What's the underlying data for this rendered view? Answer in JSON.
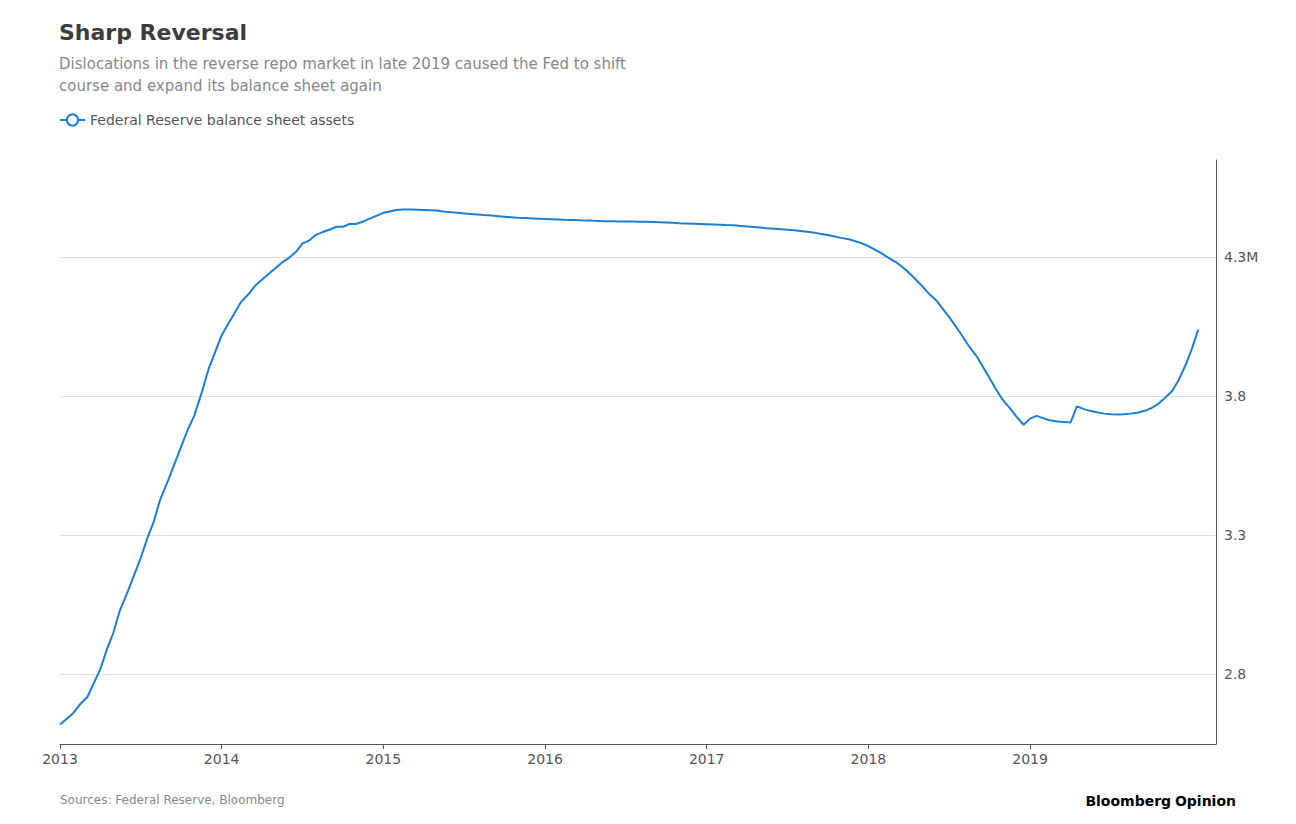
{
  "chart_data": {
    "type": "line",
    "title": "Sharp Reversal",
    "subtitle": [
      "Dislocations in the reverse repo market in late 2019 caused the Fed to shift",
      "course and expand its balance sheet again"
    ],
    "annotations": [
      {
        "text": "Sources: Federal Reserve, Bloomberg"
      },
      {
        "text": "Bloomberg"
      },
      {
        "text": "Opinion",
        "color": "#1a7fd4"
      }
    ],
    "x": [
      2013.0,
      2013.04,
      2013.08,
      2013.12,
      2013.17,
      2013.21,
      2013.25,
      2013.29,
      2013.33,
      2013.37,
      2013.42,
      2013.46,
      2013.5,
      2013.54,
      2013.58,
      2013.62,
      2013.67,
      2013.71,
      2013.75,
      2013.79,
      2013.83,
      2013.88,
      2013.92,
      2013.96,
      2014.0,
      2014.04,
      2014.08,
      2014.12,
      2014.17,
      2014.21,
      2014.25,
      2014.29,
      2014.33,
      2014.37,
      2014.42,
      2014.46,
      2014.5,
      2014.54,
      2014.58,
      2014.62,
      2014.67,
      2014.71,
      2014.75,
      2014.79,
      2014.83,
      2014.88,
      2014.92,
      2014.96,
      2015.0,
      2015.04,
      2015.08,
      2015.12,
      2015.17,
      2015.21,
      2015.25,
      2015.29,
      2015.33,
      2015.37,
      2015.42,
      2015.46,
      2015.5,
      2015.54,
      2015.58,
      2015.62,
      2015.67,
      2015.71,
      2015.75,
      2015.79,
      2015.83,
      2015.88,
      2015.92,
      2015.96,
      2016.0,
      2016.04,
      2016.08,
      2016.12,
      2016.17,
      2016.21,
      2016.25,
      2016.29,
      2016.33,
      2016.37,
      2016.42,
      2016.46,
      2016.5,
      2016.54,
      2016.58,
      2016.62,
      2016.67,
      2016.71,
      2016.75,
      2016.79,
      2016.83,
      2016.88,
      2016.92,
      2016.96,
      2017.0,
      2017.04,
      2017.08,
      2017.12,
      2017.17,
      2017.21,
      2017.25,
      2017.29,
      2017.33,
      2017.37,
      2017.42,
      2017.46,
      2017.5,
      2017.54,
      2017.58,
      2017.62,
      2017.67,
      2017.71,
      2017.75,
      2017.79,
      2017.83,
      2017.88,
      2017.92,
      2017.96,
      2018.0,
      2018.04,
      2018.08,
      2018.12,
      2018.17,
      2018.21,
      2018.25,
      2018.29,
      2018.33,
      2018.37,
      2018.42,
      2018.46,
      2018.5,
      2018.54,
      2018.58,
      2018.62,
      2018.67,
      2018.71,
      2018.75,
      2018.79,
      2018.83,
      2018.88,
      2018.92,
      2018.96,
      2019.0,
      2019.04,
      2019.08,
      2019.12,
      2019.17,
      2019.21,
      2019.25,
      2019.29,
      2019.33,
      2019.37,
      2019.42,
      2019.46,
      2019.5,
      2019.54,
      2019.58,
      2019.62,
      2019.67,
      2019.71,
      2019.75,
      2019.79,
      2019.83,
      2019.88,
      2019.92,
      2019.96,
      2020.0,
      2020.04
    ],
    "series": [
      {
        "name": "Federal Reserve balance sheet assets",
        "color": "#1a7fd4",
        "values": [
          2.62,
          2.64,
          2.66,
          2.69,
          2.72,
          2.77,
          2.82,
          2.89,
          2.95,
          3.03,
          3.1,
          3.16,
          3.22,
          3.29,
          3.35,
          3.43,
          3.5,
          3.56,
          3.62,
          3.68,
          3.73,
          3.82,
          3.9,
          3.96,
          4.02,
          4.06,
          4.1,
          4.14,
          4.17,
          4.2,
          4.22,
          4.24,
          4.26,
          4.28,
          4.3,
          4.32,
          4.35,
          4.36,
          4.38,
          4.39,
          4.4,
          4.41,
          4.41,
          4.42,
          4.42,
          4.43,
          4.44,
          4.45,
          4.46,
          4.465,
          4.47,
          4.472,
          4.472,
          4.471,
          4.47,
          4.469,
          4.468,
          4.465,
          4.462,
          4.46,
          4.458,
          4.456,
          4.454,
          4.452,
          4.45,
          4.448,
          4.446,
          4.444,
          4.442,
          4.441,
          4.44,
          4.439,
          4.438,
          4.437,
          4.436,
          4.435,
          4.434,
          4.433,
          4.432,
          4.432,
          4.431,
          4.43,
          4.43,
          4.429,
          4.429,
          4.429,
          4.428,
          4.428,
          4.427,
          4.426,
          4.425,
          4.424,
          4.423,
          4.422,
          4.421,
          4.42,
          4.419,
          4.418,
          4.417,
          4.416,
          4.415,
          4.413,
          4.411,
          4.409,
          4.407,
          4.405,
          4.403,
          4.401,
          4.399,
          4.397,
          4.395,
          4.392,
          4.388,
          4.384,
          4.38,
          4.375,
          4.37,
          4.365,
          4.358,
          4.35,
          4.34,
          4.328,
          4.315,
          4.3,
          4.283,
          4.265,
          4.245,
          4.222,
          4.198,
          4.172,
          4.145,
          4.115,
          4.085,
          4.052,
          4.018,
          3.982,
          3.944,
          3.905,
          3.865,
          3.825,
          3.788,
          3.754,
          3.724,
          3.698,
          3.72,
          3.73,
          3.722,
          3.714,
          3.71,
          3.708,
          3.706,
          3.764,
          3.755,
          3.748,
          3.742,
          3.738,
          3.736,
          3.735,
          3.736,
          3.738,
          3.742,
          3.748,
          3.758,
          3.772,
          3.792,
          3.82,
          3.86,
          3.91,
          3.97,
          4.04
        ]
      }
    ],
    "xlim": [
      2013.0,
      2020.15
    ],
    "xticks": [
      2013,
      2014,
      2015,
      2016,
      2017,
      2018,
      2019
    ],
    "ylim": [
      2.55,
      4.65
    ],
    "yticks": [
      2.8,
      3.3,
      3.8,
      {
        "value": 4.3,
        "label": "4.3M"
      }
    ],
    "grid": true,
    "legend": "top-left"
  }
}
